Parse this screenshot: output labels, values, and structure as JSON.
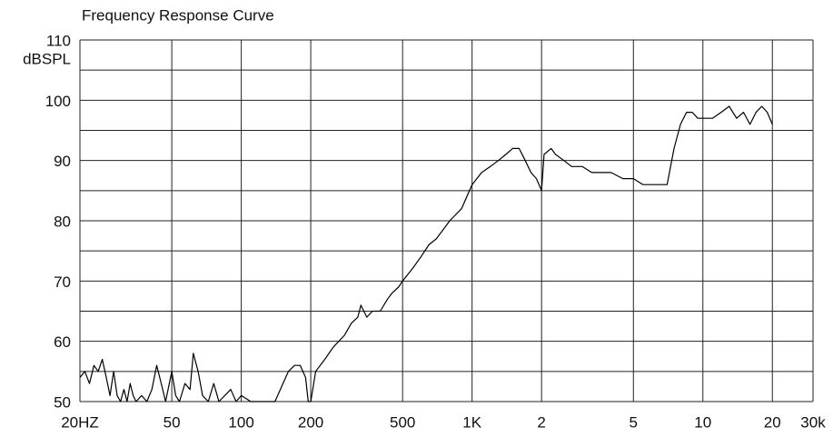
{
  "chart_data": {
    "type": "line",
    "title": "Frequency Response Curve",
    "ylabel": "dBSPL",
    "xscale": "log",
    "xlim": [
      20,
      30000
    ],
    "xticks": [
      {
        "value": 20,
        "label": "20HZ"
      },
      50,
      100,
      200,
      500,
      {
        "value": 1000,
        "label": "1K"
      },
      {
        "value": 2000,
        "label": "2"
      },
      {
        "value": 5000,
        "label": "5"
      },
      {
        "value": 10000,
        "label": "10"
      },
      {
        "value": 20000,
        "label": "20"
      },
      {
        "value": 30000,
        "label": "30k"
      }
    ],
    "ylim": [
      50,
      110
    ],
    "yticks": [
      50,
      60,
      70,
      80,
      90,
      100,
      110
    ],
    "yminor": [
      55,
      65,
      75,
      85,
      95,
      105
    ],
    "grid": true,
    "series": [
      {
        "color": "#000000",
        "x": [
          20,
          21,
          22,
          23,
          24,
          25,
          26,
          27,
          28,
          29,
          30,
          31,
          32,
          33,
          34,
          35,
          37,
          39,
          41,
          43,
          45,
          47,
          50,
          52,
          54,
          57,
          60,
          62,
          65,
          68,
          72,
          76,
          80,
          90,
          95,
          100,
          110,
          140,
          160,
          170,
          180,
          190,
          195,
          200,
          210,
          230,
          250,
          280,
          300,
          320,
          330,
          350,
          370,
          400,
          430,
          450,
          480,
          500,
          550,
          600,
          650,
          700,
          800,
          900,
          1000,
          1100,
          1200,
          1300,
          1400,
          1500,
          1600,
          1700,
          1800,
          1900,
          2000,
          2050,
          2200,
          2300,
          2500,
          2700,
          3000,
          3300,
          3600,
          4000,
          4500,
          5000,
          5500,
          6000,
          6500,
          7000,
          7500,
          8000,
          8500,
          9000,
          9500,
          10000,
          11000,
          12000,
          13000,
          14000,
          15000,
          16000,
          17000,
          18000,
          19000,
          20000
        ],
        "values": [
          54,
          55,
          53,
          56,
          55,
          57,
          54,
          51,
          55,
          51,
          50,
          52,
          50,
          53,
          51,
          50,
          51,
          50,
          52,
          56,
          53,
          50,
          55,
          51,
          50,
          53,
          52,
          58,
          55,
          51,
          50,
          53,
          50,
          52,
          50,
          51,
          50,
          50,
          55,
          56,
          56,
          54,
          50,
          50,
          55,
          57,
          59,
          61,
          63,
          64,
          66,
          64,
          65,
          65,
          67,
          68,
          69,
          70,
          72,
          74,
          76,
          77,
          80,
          82,
          86,
          88,
          89,
          90,
          91,
          92,
          92,
          90,
          88,
          87,
          85,
          91,
          92,
          91,
          90,
          89,
          89,
          88,
          88,
          88,
          87,
          87,
          86,
          86,
          86,
          86,
          92,
          96,
          98,
          98,
          97,
          97,
          97,
          98,
          99,
          97,
          98,
          96,
          98,
          99,
          98,
          96
        ]
      }
    ]
  }
}
